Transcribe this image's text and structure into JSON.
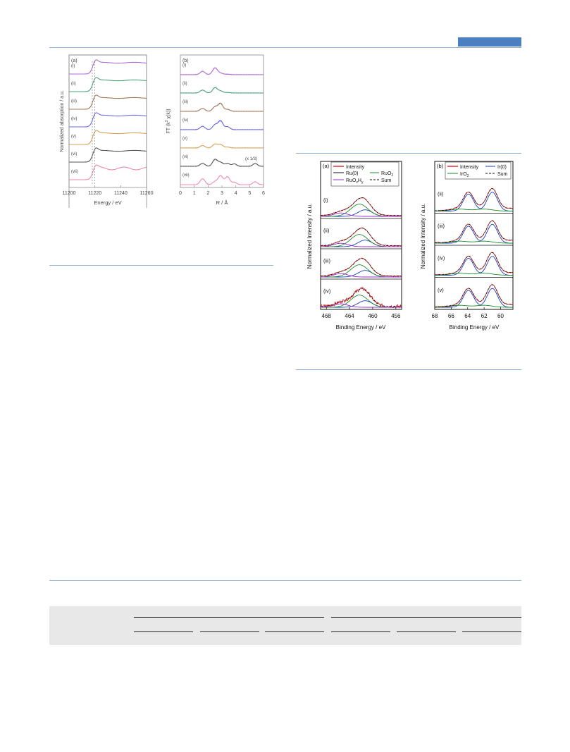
{
  "colors": {
    "rule": "#8fb3d6",
    "header_tab": "#4a7fc1",
    "xanes": [
      "#b06ad6",
      "#4aa27a",
      "#a0785a",
      "#6a6ae8",
      "#d4a25a",
      "#555555",
      "#f08aa8"
    ],
    "xps_intensity": "#e01010",
    "xps_ru0": "#1a3fc0",
    "xps_ruo2": "#1a8a2a",
    "xps_ruoxhy": "#9a2ad0",
    "xps_sum": "#111111"
  },
  "chart_data": [
    {
      "type": "line",
      "panel": "(a)",
      "ylabel": "Normalized absorption / a.u.",
      "xlabel": "Energy / eV",
      "xlim": [
        11200,
        11260
      ],
      "xticks": [
        "11200",
        "11220",
        "11240",
        "11260"
      ],
      "series_labels": [
        "(i)",
        "(ii)",
        "(iii)",
        "(iv)",
        "(v)",
        "(vi)",
        "(vii)"
      ],
      "edge_energy": 11219,
      "reference_lines": [
        11218,
        11220
      ]
    },
    {
      "type": "line",
      "panel": "(b)",
      "ylabel": "FT (k3 χ(k))",
      "ylabel_parts": [
        "FT (k",
        "3",
        " χ(k))"
      ],
      "xlabel": "R / Å",
      "xlim": [
        0,
        6
      ],
      "xticks": [
        "0",
        "1",
        "2",
        "3",
        "4",
        "5",
        "6"
      ],
      "series_labels": [
        "(i)",
        "(ii)",
        "(iii)",
        "(iv)",
        "(v)",
        "(vi)",
        "(vii)"
      ],
      "annotation": "(x 1/3)",
      "peaks_R": [
        1.6,
        2.5,
        2.9,
        3.4
      ]
    },
    {
      "type": "line",
      "panel": "(a)",
      "ylabel": "Normalized Intensity / a.u.",
      "xlabel": "Binding Energy / eV",
      "xlim": [
        469,
        455
      ],
      "xticks": [
        "468",
        "464",
        "460",
        "456"
      ],
      "legend": [
        "Intensity",
        "Ru(0)",
        "RuO2",
        "RuOxHy",
        "Sum"
      ],
      "legend_parts": {
        "ruo2": [
          "RuO",
          "2"
        ],
        "ruoxhy": [
          "RuO",
          "x",
          "H",
          "y"
        ]
      },
      "series_labels": [
        "(i)",
        "(ii)",
        "(iii)",
        "(iv)"
      ],
      "peak_BE": 462.0
    },
    {
      "type": "line",
      "panel": "(b)",
      "ylabel": "Normalized Intensity / a.u.",
      "xlabel": "Binding Energy / eV",
      "xlim": [
        68,
        58.5
      ],
      "xticks": [
        "68",
        "66",
        "64",
        "62",
        "60"
      ],
      "legend": [
        "Intensity",
        "Ir(0)",
        "IrO2",
        "Sum"
      ],
      "legend_parts": {
        "iro2": [
          "IrO",
          "2"
        ]
      },
      "series_labels": [
        "(ii)",
        "(iii)",
        "(iv)",
        "(v)"
      ],
      "peaks_BE": [
        63.9,
        61.0
      ]
    }
  ]
}
